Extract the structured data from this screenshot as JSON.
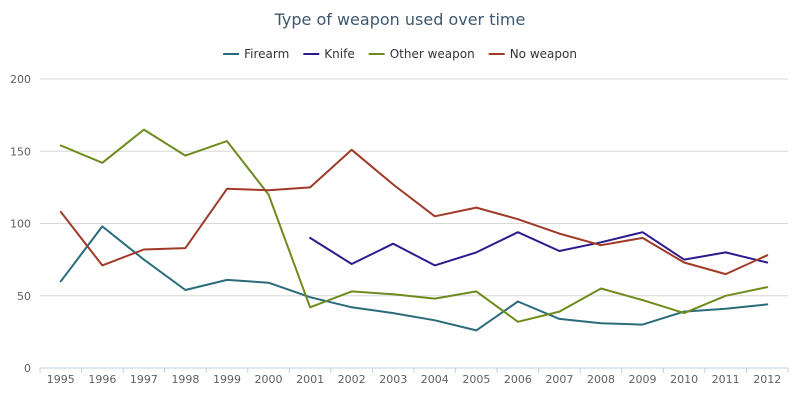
{
  "chart_data": {
    "type": "line",
    "title": "Type of weapon used over time",
    "xlabel": "",
    "ylabel": "",
    "ylim": [
      0,
      200
    ],
    "yticks": [
      0,
      50,
      100,
      150,
      200
    ],
    "grid": true,
    "legend_position": "top-center",
    "categories": [
      "1995",
      "1996",
      "1997",
      "1998",
      "1999",
      "2000",
      "2001",
      "2002",
      "2003",
      "2004",
      "2005",
      "2006",
      "2007",
      "2008",
      "2009",
      "2010",
      "2011",
      "2012"
    ],
    "series": [
      {
        "name": "Firearm",
        "color": "#2a6b7c",
        "values": [
          60,
          98,
          75,
          54,
          61,
          59,
          49,
          42,
          38,
          33,
          26,
          46,
          34,
          31,
          30,
          39,
          41,
          44
        ]
      },
      {
        "name": "Knife",
        "color": "#2d1a8e",
        "values": [
          null,
          null,
          null,
          null,
          null,
          null,
          90,
          72,
          86,
          71,
          80,
          94,
          81,
          87,
          94,
          75,
          80,
          73
        ]
      },
      {
        "name": "Other weapon",
        "color": "#6e8b1e",
        "values": [
          154,
          142,
          165,
          147,
          157,
          120,
          42,
          53,
          51,
          48,
          53,
          32,
          39,
          55,
          47,
          38,
          50,
          56
        ]
      },
      {
        "name": "No weapon",
        "color": "#a03a28",
        "values": [
          108,
          71,
          82,
          83,
          124,
          123,
          125,
          151,
          127,
          105,
          111,
          103,
          93,
          85,
          90,
          73,
          65,
          78
        ]
      }
    ]
  }
}
